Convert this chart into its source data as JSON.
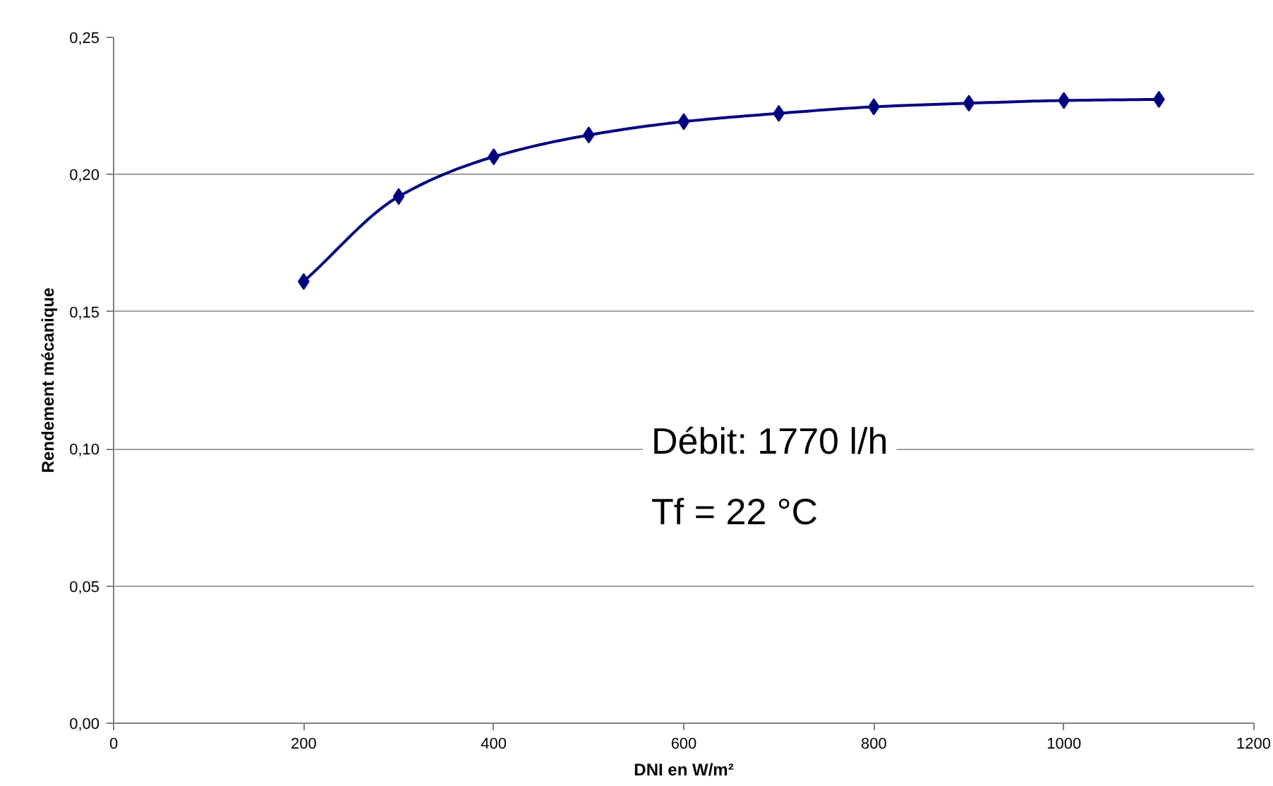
{
  "chart_data": {
    "type": "line",
    "xlabel": "DNI en W/m²",
    "ylabel": "Rendement mécanique",
    "x": [
      200,
      300,
      400,
      500,
      600,
      700,
      800,
      900,
      1000,
      1100
    ],
    "series": [
      {
        "color": "#000080",
        "values": [
          0.161,
          0.192,
          0.2065,
          0.2144,
          0.2193,
          0.2223,
          0.2247,
          0.226,
          0.227,
          0.2274
        ]
      }
    ],
    "xlim": [
      0,
      1200
    ],
    "xticks": [
      0,
      200,
      400,
      600,
      800,
      1000,
      1200
    ],
    "ylim": [
      0,
      0.25
    ],
    "yticks": [
      {
        "value": 0,
        "label": "0,00"
      },
      {
        "value": 0.05,
        "label": "0,05"
      },
      {
        "value": 0.1,
        "label": "0,10"
      },
      {
        "value": 0.15,
        "label": "0,15"
      },
      {
        "value": 0.2,
        "label": "0,20"
      },
      {
        "value": 0.25,
        "label": "0,25"
      }
    ],
    "grid": "y",
    "marker": "diamond",
    "line_style": "solid",
    "annotations": [
      "Débit: 1770 l/h",
      "Tf = 22 °C"
    ]
  }
}
